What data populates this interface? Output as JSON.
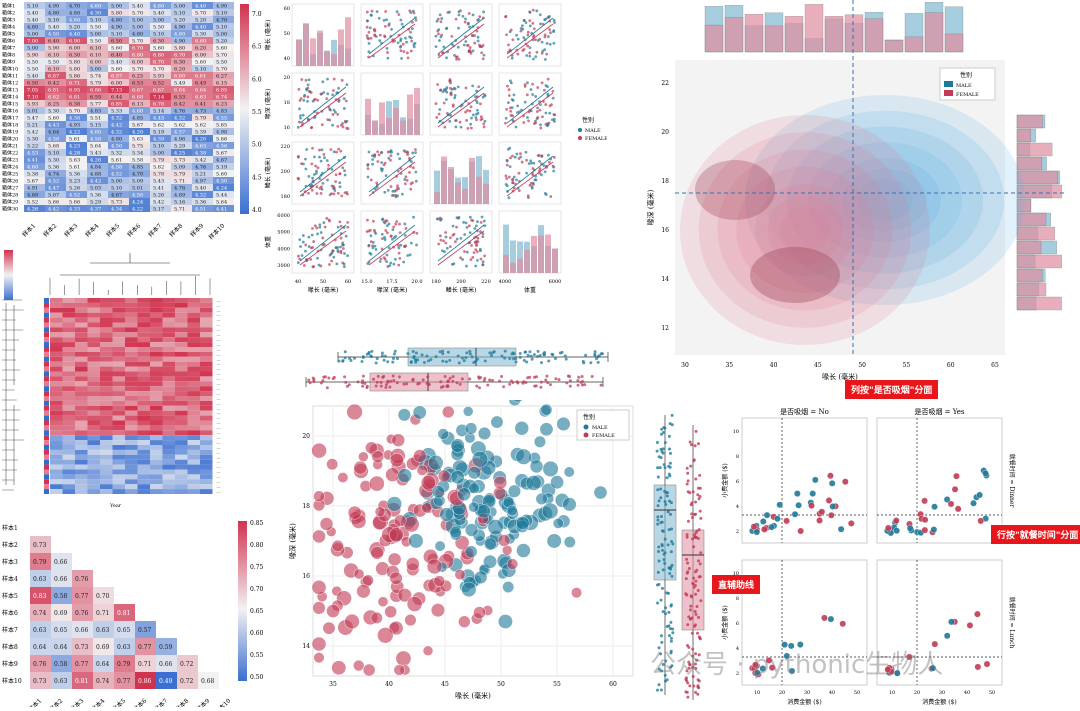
{
  "colors": {
    "male": "#1f7a99",
    "female": "#c23a55",
    "male_light": "#7fb8d1",
    "female_light": "#e08da0",
    "heat_low": "#3b6fd1",
    "heat_mid": "#f2f2f2",
    "heat_high": "#d1334f",
    "callout": "#e8161b"
  },
  "panels": {
    "heatmap": {
      "rows": [
        "箱体1",
        "箱体2",
        "箱体3",
        "箱体4",
        "箱体5",
        "箱体6",
        "箱体7",
        "箱体8",
        "箱体9",
        "箱体10",
        "箱体11",
        "箱体12",
        "箱体13",
        "箱体14",
        "箱体15",
        "箱体16",
        "箱体17",
        "箱体18",
        "箱体19",
        "箱体20",
        "箱体21",
        "箱体22",
        "箱体23",
        "箱体24",
        "箱体25",
        "箱体26",
        "箱体27",
        "箱体28",
        "箱体29",
        "箱体30"
      ],
      "cols": [
        "样本1",
        "样本2",
        "样本3",
        "样本4",
        "样本5",
        "样本6",
        "样本7",
        "样本8",
        "样本9",
        "样本10"
      ],
      "colorbar_ticks": [
        "7.0",
        "6.5",
        "6.0",
        "5.5",
        "5.0",
        "4.5",
        "4.0"
      ],
      "first_rows_values": [
        [
          "5.10",
          "4.90",
          "4.70",
          "4.60",
          "5.00",
          "5.40",
          "4.60",
          "5.00",
          "4.40",
          "4.90"
        ],
        [
          "5.40",
          "4.80",
          "4.80",
          "4.30",
          "5.80",
          "5.70",
          "5.40",
          "5.10",
          "5.70",
          "5.10"
        ],
        [
          "5.40",
          "5.10",
          "4.60",
          "5.10",
          "4.80",
          "5.00",
          "5.00",
          "5.20",
          "5.20",
          "4.70"
        ],
        [
          "4.80",
          "5.40",
          "5.20",
          "5.50",
          "4.90",
          "5.00",
          "5.50",
          "4.90",
          "4.40",
          "5.10"
        ],
        [
          "5.00",
          "4.50",
          "4.40",
          "5.00",
          "5.10",
          "4.80",
          "5.10",
          "4.60",
          "5.30",
          "5.00"
        ],
        [
          "7.00",
          "6.40",
          "6.90",
          "5.50",
          "6.50",
          "5.70",
          "6.30",
          "4.90",
          "6.60",
          "5.20"
        ],
        [
          "5.00",
          "5.90",
          "6.00",
          "6.10",
          "5.60",
          "6.70",
          "5.60",
          "5.80",
          "6.20",
          "5.60"
        ],
        [
          "5.90",
          "6.10",
          "6.30",
          "6.10",
          "6.40",
          "6.60",
          "6.80",
          "6.70",
          "6.00",
          "5.70"
        ],
        [
          "5.50",
          "5.50",
          "5.80",
          "6.00",
          "5.40",
          "6.00",
          "6.70",
          "6.30",
          "5.60",
          "5.50"
        ],
        [
          "5.50",
          "6.10",
          "5.80",
          "5.00",
          "5.60",
          "5.70",
          "5.70",
          "6.20",
          "5.10",
          "5.70"
        ]
      ]
    },
    "clustermap": {
      "xlabel": "Year"
    },
    "triangle": {
      "labels": [
        "样本1",
        "样本2",
        "样本3",
        "样本4",
        "样本5",
        "样本6",
        "样本7",
        "样本8",
        "样本9",
        "样本10"
      ],
      "values": [
        [],
        [
          "0.73"
        ],
        [
          "0.79",
          "0.66"
        ],
        [
          "0.63",
          "0.66",
          "0.76"
        ],
        [
          "0.83",
          "0.58",
          "0.77",
          "0.70"
        ],
        [
          "0.74",
          "0.69",
          "0.76",
          "0.71",
          "0.81"
        ],
        [
          "0.63",
          "0.65",
          "0.66",
          "0.63",
          "0.65",
          "0.57"
        ],
        [
          "0.64",
          "0.64",
          "0.73",
          "0.69",
          "0.63",
          "0.77",
          "0.59"
        ],
        [
          "0.76",
          "0.58",
          "0.77",
          "0.64",
          "0.79",
          "0.71",
          "0.66",
          "0.72"
        ],
        [
          "0.73",
          "0.63",
          "0.81",
          "0.74",
          "0.77",
          "0.86",
          "0.49",
          "0.72",
          "0.68"
        ]
      ],
      "colorbar_ticks": [
        "0.85",
        "0.80",
        "0.75",
        "0.70",
        "0.65",
        "0.60",
        "0.55",
        "0.50"
      ]
    },
    "pairplot": {
      "axis_labels": [
        "喙长 (毫米)",
        "喙深 (毫米)",
        "鳍长 (毫米)",
        "体重"
      ],
      "legend_title": "性别",
      "legend_items": [
        "MALE",
        "FEMALE"
      ],
      "x_ticks": [
        [
          "40",
          "50",
          "60"
        ],
        [
          "15.0",
          "17.5",
          "20.0"
        ],
        [
          "180",
          "200",
          "220"
        ],
        [
          "4000",
          "6000"
        ]
      ],
      "y_ticks": [
        [
          "40",
          "50",
          "60"
        ],
        [
          "16",
          "18",
          "20"
        ],
        [
          "180",
          "200",
          "220"
        ],
        [
          "3000",
          "4000",
          "5000",
          "6000"
        ]
      ]
    },
    "kde": {
      "xlabel": "喙长 (毫米)",
      "ylabel": "喙深 (毫米)",
      "legend_title": "性别",
      "legend_items": [
        "MALE",
        "FEMALE"
      ],
      "x_ticks": [
        "30",
        "35",
        "40",
        "45",
        "50",
        "55",
        "60",
        "65"
      ],
      "y_ticks": [
        "12",
        "14",
        "16",
        "18",
        "20",
        "22"
      ]
    },
    "scatter": {
      "xlabel": "喙长 (毫米)",
      "ylabel": "喙深 (毫米)",
      "legend_title": "性别",
      "legend_items": [
        "MALE",
        "FEMALE"
      ],
      "x_ticks": [
        "35",
        "40",
        "45",
        "50",
        "55",
        "60"
      ],
      "y_ticks": [
        "14",
        "16",
        "18",
        "20"
      ]
    },
    "facet": {
      "col_titles": [
        "是否吸烟 = No",
        "是否吸烟 = Yes"
      ],
      "row_titles": [
        "就餐时间 = Dinner",
        "就餐时间 = Lunch"
      ],
      "xlabel": "消费金额 ($)",
      "ylabel": "小费金额 ($)",
      "x_ticks": [
        "10",
        "20",
        "30",
        "40",
        "50"
      ],
      "y_ticks": [
        "2",
        "4",
        "6",
        "8",
        "10"
      ]
    }
  },
  "callouts": {
    "col_facet": "列按\"是否吸烟\"分面",
    "row_facet": "行按\"就餐时间\"分面",
    "ref_line": "直辅助线"
  },
  "watermark": "公众号 · pythonic生物人"
}
